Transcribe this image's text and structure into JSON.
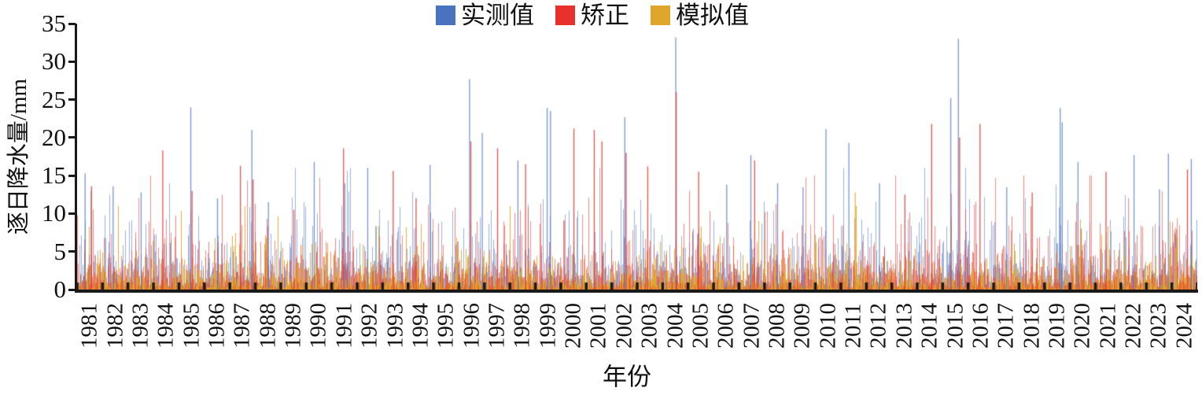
{
  "chart_data": {
    "type": "bar",
    "subtype": "daily-precipitation-spike-series",
    "title": "",
    "xlabel": "年份",
    "ylabel": "逐日降水量/mm",
    "ylim": [
      0,
      35
    ],
    "yticks": [
      0,
      5,
      10,
      15,
      20,
      25,
      30,
      35
    ],
    "x_start_year": 1981,
    "x_end_year": 2024,
    "years": [
      1981,
      1982,
      1983,
      1984,
      1985,
      1986,
      1987,
      1988,
      1989,
      1990,
      1991,
      1992,
      1993,
      1994,
      1995,
      1996,
      1997,
      1998,
      1999,
      2000,
      2001,
      2002,
      2003,
      2004,
      2005,
      2006,
      2007,
      2008,
      2009,
      2010,
      2011,
      2012,
      2013,
      2014,
      2015,
      2016,
      2017,
      2018,
      2019,
      2020,
      2021,
      2022,
      2023,
      2024
    ],
    "grid": false,
    "axis_color": "#1a1a1a",
    "legend": {
      "position": "top-center",
      "items": [
        {
          "label": "实测值",
          "color": "#4a73bf"
        },
        {
          "label": "矫正",
          "color": "#e8312a"
        },
        {
          "label": "模拟值",
          "color": "#e0a62b"
        }
      ]
    },
    "notable_peaks_format": "[x_year, series_index(0=实测值,1=矫正,2=模拟值), value_mm]",
    "notable_peaks": [
      [
        1981.3,
        0,
        15.3
      ],
      [
        1981.55,
        1,
        13.6
      ],
      [
        1982.4,
        0,
        13.6
      ],
      [
        1983.5,
        0,
        12.8
      ],
      [
        1984.35,
        1,
        18.3
      ],
      [
        1985.45,
        0,
        24.0
      ],
      [
        1985.5,
        1,
        13.0
      ],
      [
        1986.5,
        0,
        12.0
      ],
      [
        1987.4,
        1,
        16.3
      ],
      [
        1987.85,
        0,
        21.0
      ],
      [
        1987.9,
        1,
        14.5
      ],
      [
        1988.5,
        0,
        11.5
      ],
      [
        1989.5,
        1,
        10.5
      ],
      [
        1990.3,
        0,
        16.8
      ],
      [
        1991.45,
        1,
        18.6
      ],
      [
        1991.5,
        0,
        14.0
      ],
      [
        1992.4,
        0,
        16.0
      ],
      [
        1993.4,
        1,
        15.6
      ],
      [
        1994.3,
        1,
        12.0
      ],
      [
        1994.85,
        0,
        16.4
      ],
      [
        1996.4,
        0,
        27.7
      ],
      [
        1996.45,
        1,
        19.5
      ],
      [
        1996.9,
        0,
        20.6
      ],
      [
        1997.5,
        1,
        18.6
      ],
      [
        1998.3,
        0,
        17.0
      ],
      [
        1998.6,
        1,
        16.5
      ],
      [
        1999.45,
        0,
        23.9
      ],
      [
        1999.58,
        0,
        23.5
      ],
      [
        2000.5,
        1,
        21.2
      ],
      [
        2001.3,
        1,
        21.0
      ],
      [
        2001.6,
        1,
        19.5
      ],
      [
        2002.5,
        0,
        22.7
      ],
      [
        2002.55,
        1,
        18.0
      ],
      [
        2003.4,
        1,
        16.2
      ],
      [
        2004.5,
        0,
        33.2
      ],
      [
        2004.52,
        1,
        26.0
      ],
      [
        2005.4,
        1,
        15.5
      ],
      [
        2006.5,
        0,
        13.8
      ],
      [
        2007.45,
        0,
        17.7
      ],
      [
        2007.6,
        1,
        17.0
      ],
      [
        2008.5,
        0,
        14.0
      ],
      [
        2009.5,
        0,
        13.5
      ],
      [
        2010.4,
        0,
        21.1
      ],
      [
        2011.3,
        0,
        19.3
      ],
      [
        2011.55,
        2,
        12.8
      ],
      [
        2012.5,
        0,
        14.0
      ],
      [
        2013.5,
        1,
        12.5
      ],
      [
        2014.55,
        1,
        21.8
      ],
      [
        2015.3,
        0,
        25.2
      ],
      [
        2015.6,
        0,
        33.0
      ],
      [
        2015.65,
        1,
        20.0
      ],
      [
        2016.45,
        1,
        21.8
      ],
      [
        2017.5,
        0,
        13.5
      ],
      [
        2018.5,
        1,
        12.8
      ],
      [
        2019.6,
        0,
        23.9
      ],
      [
        2019.68,
        0,
        22.0
      ],
      [
        2020.3,
        0,
        16.8
      ],
      [
        2021.4,
        1,
        15.5
      ],
      [
        2022.5,
        0,
        17.7
      ],
      [
        2023.5,
        0,
        13.2
      ],
      [
        2023.85,
        0,
        17.9
      ],
      [
        2024.6,
        1,
        15.8
      ],
      [
        2024.75,
        0,
        17.2
      ]
    ],
    "noise_model": {
      "seed": 7,
      "mean_mm": {
        "实测值": 2.8,
        "矫正": 2.6,
        "模拟值": 1.6
      },
      "cap_mm": {
        "实测值": 16,
        "矫正": 15,
        "模拟值": 11
      },
      "min_simulated_mm": 0.25,
      "boost_probability": 0.05,
      "boost_factor": 1.6
    }
  }
}
